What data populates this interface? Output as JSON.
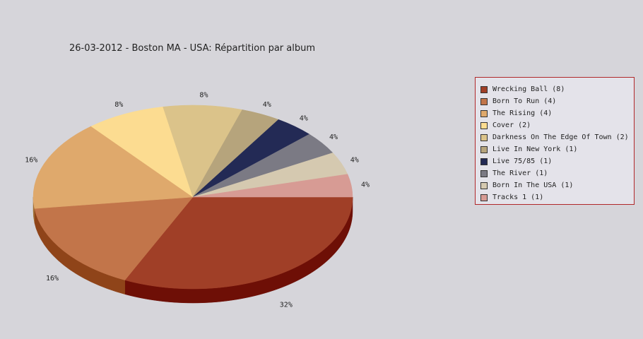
{
  "title": "26-03-2012 - Boston MA - USA:  Répartition par album",
  "chart_data": {
    "type": "pie",
    "title": "26-03-2012 - Boston MA - USA:  Répartition par album",
    "legend_position": "right",
    "slices": [
      {
        "label": "Wrecking Ball (8)",
        "value": 8,
        "pct_label": "32%",
        "color": "#a03f27",
        "side": "#6e0f06"
      },
      {
        "label": "Born To Run (4)",
        "value": 4,
        "pct_label": "16%",
        "color": "#c2754a",
        "side": "#8f4419"
      },
      {
        "label": "The Rising (4)",
        "value": 4,
        "pct_label": "16%",
        "color": "#dfa96c",
        "side": "#a06e35"
      },
      {
        "label": "Cover (2)",
        "value": 2,
        "pct_label": "8%",
        "color": "#fcdc91",
        "side": "#b39a55"
      },
      {
        "label": "Darkness On The Edge Of Town (2)",
        "value": 2,
        "pct_label": "8%",
        "color": "#dbc38a",
        "side": "#9a8756"
      },
      {
        "label": "Live In New York  (1)",
        "value": 1,
        "pct_label": "4%",
        "color": "#b6a47c",
        "side": "#7c6e4f"
      },
      {
        "label": "Live 75/85 (1)",
        "value": 1,
        "pct_label": "4%",
        "color": "#232a55",
        "side": "#10142e"
      },
      {
        "label": "The River (1)",
        "value": 1,
        "pct_label": "4%",
        "color": "#7b7a84",
        "side": "#4e4d55"
      },
      {
        "label": "Born In The USA (1)",
        "value": 1,
        "pct_label": "4%",
        "color": "#d5c9b0",
        "side": "#998e78"
      },
      {
        "label": "Tracks 1 (1)",
        "value": 1,
        "pct_label": "4%",
        "color": "#d79b94",
        "side": "#9b6660"
      }
    ]
  }
}
